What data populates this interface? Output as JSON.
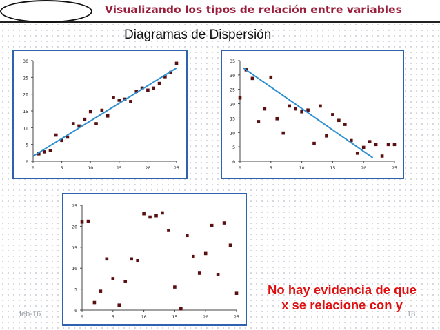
{
  "header": {
    "title": "Visualizando los tipos de relación entre variables"
  },
  "subtitle": "Diagramas de Dispersión",
  "conclusion": {
    "line1": "No hay evidencia de que",
    "line2": "x se relacione con y"
  },
  "footer": {
    "date": "feb-16",
    "page_number": "18"
  },
  "colors": {
    "title": "#9a1f3c",
    "panel_border": "#2e62b0",
    "point": "#5a1010",
    "trend_line": "#2e8fd0",
    "conclusion": "#e01010"
  },
  "chart_data": [
    {
      "type": "scatter",
      "title": "",
      "xlabel": "",
      "ylabel": "",
      "xlim": [
        0,
        25
      ],
      "ylim": [
        0,
        30
      ],
      "x_ticks": [
        "0",
        "5",
        "10",
        "15",
        "20",
        "25"
      ],
      "y_ticks": [
        "0",
        "5",
        "10",
        "15",
        "20",
        "25",
        "30"
      ],
      "grid": false,
      "points": [
        [
          1,
          2.2
        ],
        [
          2,
          2.8
        ],
        [
          3,
          3.2
        ],
        [
          4,
          7.8
        ],
        [
          5,
          6.2
        ],
        [
          6,
          7.2
        ],
        [
          7,
          11.2
        ],
        [
          8,
          10.5
        ],
        [
          9,
          12.5
        ],
        [
          10,
          14.8
        ],
        [
          11,
          11.2
        ],
        [
          12,
          15.2
        ],
        [
          13,
          13.5
        ],
        [
          14,
          19
        ],
        [
          15,
          18.2
        ],
        [
          16,
          18.5
        ],
        [
          17,
          17.8
        ],
        [
          18,
          20.8
        ],
        [
          19,
          21.8
        ],
        [
          20,
          21.2
        ],
        [
          21,
          21.8
        ],
        [
          22,
          23.2
        ],
        [
          23,
          25.2
        ],
        [
          24,
          26.5
        ],
        [
          25,
          29.2
        ]
      ],
      "trend_line": [
        [
          0,
          1.5
        ],
        [
          25,
          27.8
        ]
      ]
    },
    {
      "type": "scatter",
      "title": "",
      "xlabel": "",
      "ylabel": "",
      "xlim": [
        0,
        25
      ],
      "ylim": [
        0,
        35
      ],
      "x_ticks": [
        "0",
        "5",
        "10",
        "15",
        "20",
        "25"
      ],
      "y_ticks": [
        "0",
        "5",
        "10",
        "15",
        "20",
        "25",
        "30",
        "35"
      ],
      "grid": false,
      "points": [
        [
          0,
          22
        ],
        [
          1,
          31.8
        ],
        [
          2,
          28.8
        ],
        [
          3,
          13.8
        ],
        [
          4,
          18.2
        ],
        [
          5,
          29.2
        ],
        [
          6,
          14.8
        ],
        [
          7,
          9.8
        ],
        [
          8,
          19.2
        ],
        [
          9,
          18.2
        ],
        [
          10,
          17.2
        ],
        [
          11,
          17.8
        ],
        [
          12,
          6.2
        ],
        [
          13,
          19.2
        ],
        [
          14,
          8.8
        ],
        [
          15,
          16.2
        ],
        [
          16,
          14.2
        ],
        [
          17,
          12.8
        ],
        [
          18,
          7.2
        ],
        [
          19,
          2.8
        ],
        [
          20,
          4.8
        ],
        [
          21,
          6.8
        ],
        [
          22,
          5.8
        ],
        [
          23,
          1.8
        ],
        [
          24,
          5.8
        ],
        [
          25,
          5.8
        ]
      ],
      "trend_line": [
        [
          0.5,
          32.5
        ],
        [
          21.5,
          1.2
        ]
      ]
    },
    {
      "type": "scatter",
      "title": "",
      "xlabel": "",
      "ylabel": "",
      "xlim": [
        0,
        25
      ],
      "ylim": [
        0,
        25
      ],
      "x_ticks": [
        "0",
        "5",
        "10",
        "15",
        "20",
        "25"
      ],
      "y_ticks": [
        "0",
        "5",
        "10",
        "15",
        "20",
        "25"
      ],
      "grid": false,
      "points": [
        [
          0,
          21
        ],
        [
          1,
          21.2
        ],
        [
          2,
          1.8
        ],
        [
          3,
          4.5
        ],
        [
          4,
          12.2
        ],
        [
          5,
          7.5
        ],
        [
          6,
          1.2
        ],
        [
          7,
          6.8
        ],
        [
          8,
          12.2
        ],
        [
          9,
          11.8
        ],
        [
          10,
          23
        ],
        [
          11,
          22.2
        ],
        [
          12,
          22.5
        ],
        [
          13,
          23.2
        ],
        [
          14,
          19
        ],
        [
          15,
          5.5
        ],
        [
          16,
          0.3
        ],
        [
          17,
          17.8
        ],
        [
          18,
          12.8
        ],
        [
          19,
          8.8
        ],
        [
          20,
          13.5
        ],
        [
          21,
          20.2
        ],
        [
          22,
          8.5
        ],
        [
          23,
          20.8
        ],
        [
          24,
          15.5
        ],
        [
          25,
          4
        ]
      ],
      "trend_line": null
    }
  ]
}
